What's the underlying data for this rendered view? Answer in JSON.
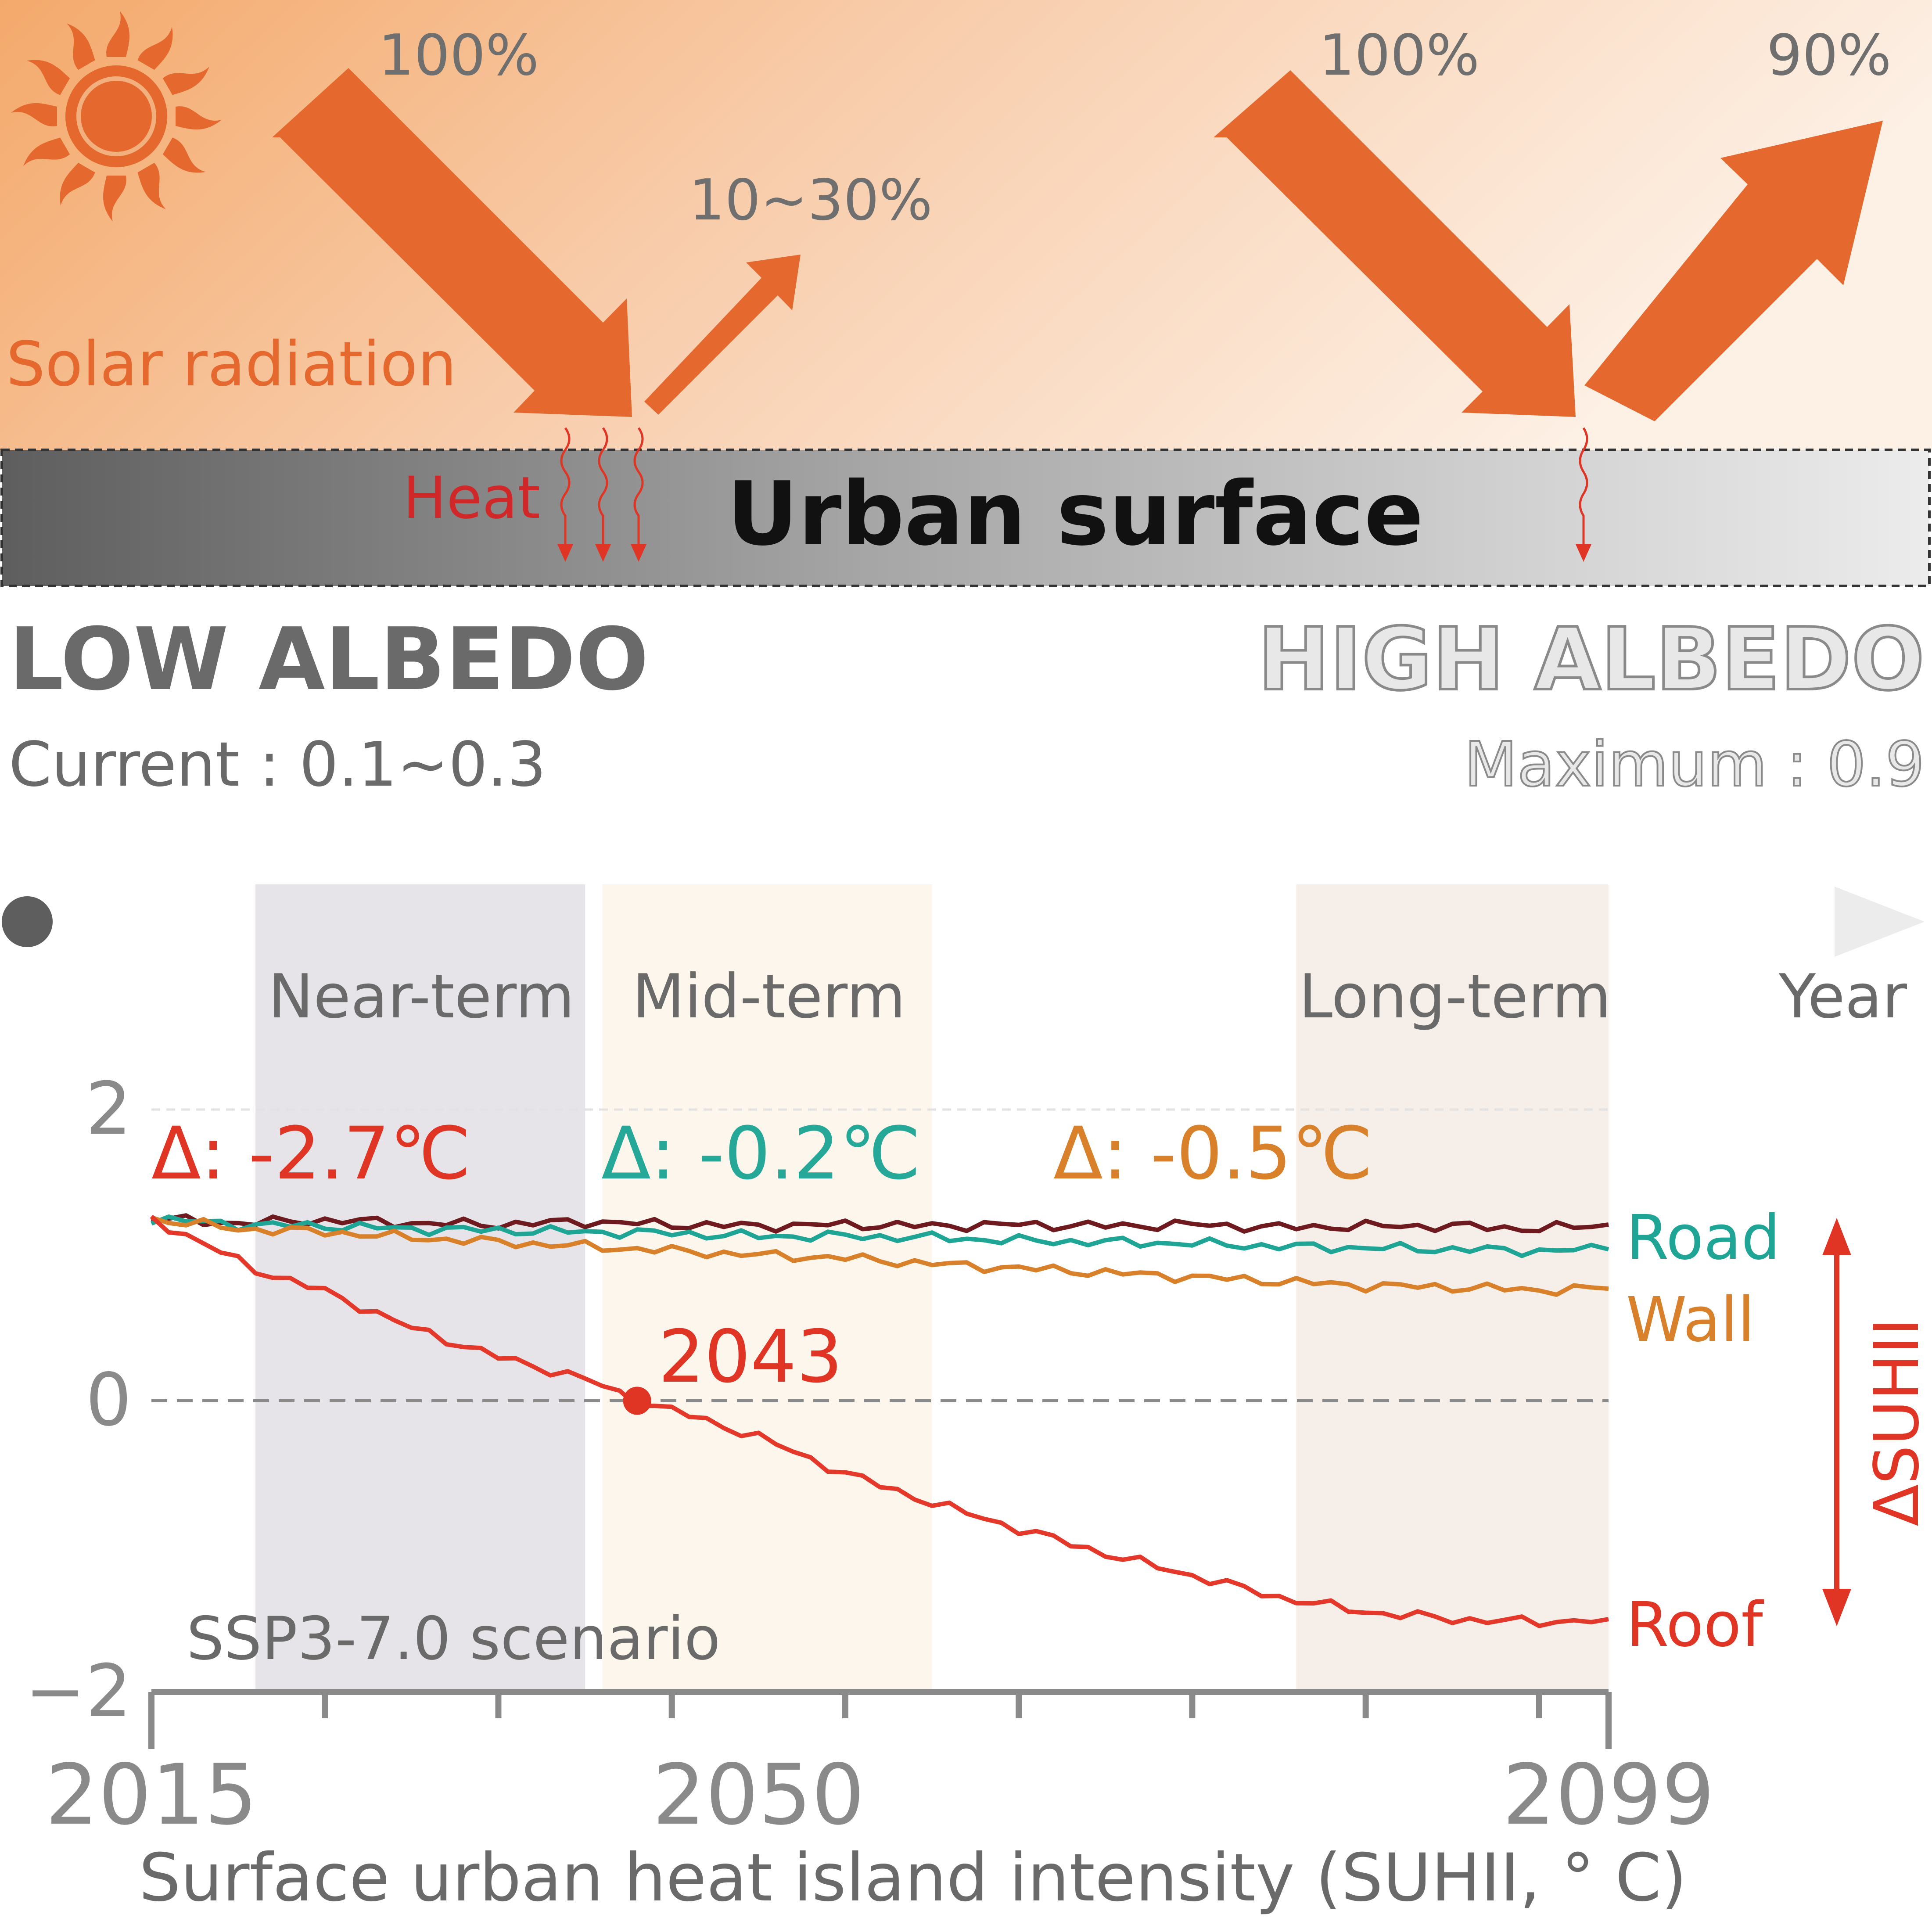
{
  "top": {
    "solar_label": "Solar radiation",
    "heat_label": "Heat",
    "surface_label": "Urban surface",
    "low_incoming": "100%",
    "low_reflected": "10~30%",
    "high_incoming": "100%",
    "high_reflected": "90%",
    "low_title": "LOW ALBEDO",
    "low_sub": "Current : 0.1~0.3",
    "high_title": "HIGH ALBEDO",
    "high_sub": "Maximum : 0.9"
  },
  "timeline": {
    "periods": [
      "Near-term",
      "Mid-term",
      "Long-term"
    ],
    "axis_word": "Year"
  },
  "chart_data": {
    "type": "line",
    "xlabel": "Surface urban heat island intensity (SUHII, ° C)",
    "ylabel": "ΔSUHII",
    "xlim": [
      2015,
      2099
    ],
    "ylim": [
      -2,
      2
    ],
    "xticks": [
      2015,
      2050,
      2099
    ],
    "yticks": [
      2,
      0,
      -2
    ],
    "ytick_labels": [
      "2",
      "0",
      "−2"
    ],
    "periods": [
      {
        "name": "Near-term",
        "start": 2021,
        "end": 2040,
        "color": "#e6e4e8"
      },
      {
        "name": "Mid-term",
        "start": 2041,
        "end": 2060,
        "color": "#fdf6ec"
      },
      {
        "name": "Long-term",
        "start": 2081,
        "end": 2099,
        "color": "#f6eee8"
      }
    ],
    "deltas": [
      {
        "text": "Δ: -2.7℃",
        "color": "#e03525"
      },
      {
        "text": "Δ: -0.2℃",
        "color": "#25a898"
      },
      {
        "text": "Δ: -0.5℃",
        "color": "#d8802a"
      }
    ],
    "annotation": {
      "text": "2043",
      "x": 2043,
      "y": 0
    },
    "scenario": "SSP3-7.0 scenario",
    "series": [
      {
        "name": "",
        "color": "#6e1a1e",
        "x": [
          2015,
          2020,
          2025,
          2030,
          2035,
          2040,
          2045,
          2050,
          2055,
          2060,
          2065,
          2070,
          2075,
          2080,
          2085,
          2090,
          2095,
          2099
        ],
        "y": [
          1.25,
          1.22,
          1.24,
          1.22,
          1.21,
          1.23,
          1.21,
          1.2,
          1.21,
          1.2,
          1.21,
          1.2,
          1.21,
          1.19,
          1.2,
          1.2,
          1.18,
          1.21
        ]
      },
      {
        "name": "Road",
        "color": "#1fa596",
        "x": [
          2015,
          2020,
          2025,
          2030,
          2035,
          2040,
          2045,
          2050,
          2055,
          2060,
          2065,
          2070,
          2075,
          2080,
          2085,
          2090,
          2095,
          2099
        ],
        "y": [
          1.25,
          1.21,
          1.2,
          1.18,
          1.17,
          1.16,
          1.15,
          1.13,
          1.13,
          1.12,
          1.1,
          1.09,
          1.08,
          1.06,
          1.05,
          1.04,
          1.03,
          1.04
        ]
      },
      {
        "name": "Wall",
        "color": "#d9802b",
        "x": [
          2015,
          2020,
          2025,
          2030,
          2035,
          2040,
          2045,
          2050,
          2055,
          2060,
          2065,
          2070,
          2075,
          2080,
          2085,
          2090,
          2095,
          2099
        ],
        "y": [
          1.25,
          1.18,
          1.16,
          1.12,
          1.09,
          1.06,
          1.03,
          1.0,
          0.98,
          0.94,
          0.91,
          0.88,
          0.85,
          0.82,
          0.79,
          0.78,
          0.76,
          0.77
        ]
      },
      {
        "name": "Roof",
        "color": "#e3382a",
        "x": [
          2015,
          2018,
          2021,
          2025,
          2030,
          2035,
          2040,
          2043,
          2046,
          2050,
          2055,
          2060,
          2065,
          2070,
          2075,
          2080,
          2085,
          2090,
          2095,
          2099
        ],
        "y": [
          1.25,
          1.08,
          0.9,
          0.75,
          0.5,
          0.3,
          0.15,
          0.0,
          -0.1,
          -0.25,
          -0.5,
          -0.7,
          -0.88,
          -1.05,
          -1.2,
          -1.35,
          -1.45,
          -1.5,
          -1.52,
          -1.5
        ]
      }
    ]
  }
}
